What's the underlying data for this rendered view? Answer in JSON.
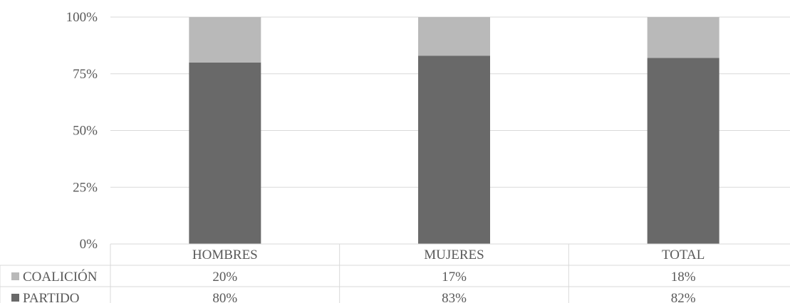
{
  "chart_data": {
    "type": "bar",
    "stacked": "percent",
    "categories": [
      "HOMBRES",
      "MUJERES",
      "TOTAL"
    ],
    "series": [
      {
        "name": "PARTIDO",
        "values": [
          80,
          83,
          82
        ],
        "labels": [
          "80%",
          "83%",
          "82%"
        ],
        "color": "#696969"
      },
      {
        "name": "COALICIÓN",
        "values": [
          20,
          17,
          18
        ],
        "labels": [
          "20%",
          "17%",
          "18%"
        ],
        "color": "#b9b9b9"
      }
    ],
    "yticks": [
      "0%",
      "25%",
      "50%",
      "75%",
      "100%"
    ],
    "ylim": [
      0,
      100
    ],
    "grid": true,
    "data_table": true,
    "legend": "data-table-left"
  }
}
